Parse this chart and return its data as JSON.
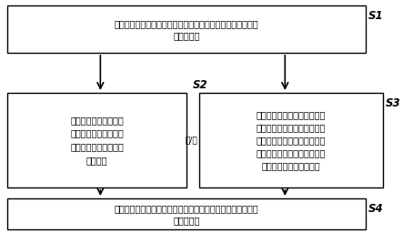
{
  "background_color": "#ffffff",
  "box_border_color": "#000000",
  "box_fill_color": "#ffffff",
  "arrow_color": "#000000",
  "text_color": "#000000",
  "font_size": 7.0,
  "label_font_size": 8.5,
  "box1_text_line1": "基于手术对象的虚拟三维模型，获取所述手术对象的所打孔的",
  "box1_text_line2": "孔位置信息",
  "box1_label": "S1",
  "box2_text": "根据所述打孔位置信息\n及所述虚拟三维模型，\n计算得到机械臂的术前\n碰撞概率",
  "box2_label": "S2",
  "box3_text": "根据历史手术数据和当前手术\n对象的虚拟三维模型，识别出\n手术步骤信息，基于所述手术\n步骤信息，计算得到机械臂于\n手术步骤的术中碰撞概率",
  "box3_label": "S3",
  "box4_text_line1": "产生提示信息以提示所述术前碰撞概率和所述术中碰撞概率中",
  "box4_text_line2": "的至少一者",
  "box4_label": "S4",
  "connector_text": "和/或"
}
